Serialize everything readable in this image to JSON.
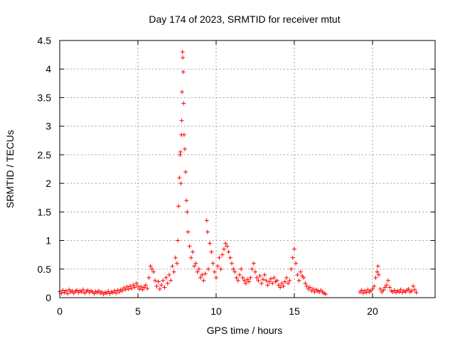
{
  "chart_data": {
    "type": "scatter",
    "title": "Day 174 of 2023, SRMTID for receiver mtut",
    "xlabel": "GPS time / hours",
    "ylabel": "SRMTID / TECUs",
    "xlim": [
      0,
      24
    ],
    "ylim": [
      0,
      4.5
    ],
    "x_ticks": [
      0,
      5,
      10,
      15,
      20
    ],
    "x_tick_labels": [
      "0",
      "5",
      "10",
      "15",
      "20"
    ],
    "y_ticks": [
      0,
      0.5,
      1,
      1.5,
      2,
      2.5,
      3,
      3.5,
      4,
      4.5
    ],
    "y_tick_labels": [
      "0",
      "0.5",
      "1",
      "1.5",
      "2",
      "2.5",
      "3",
      "3.5",
      "4",
      "4.5"
    ],
    "grid": true,
    "marker": "+",
    "color": "#ff0000",
    "series": [
      {
        "name": "SRMTID",
        "points": [
          [
            0.0,
            0.11
          ],
          [
            0.1,
            0.08
          ],
          [
            0.2,
            0.13
          ],
          [
            0.3,
            0.09
          ],
          [
            0.4,
            0.12
          ],
          [
            0.5,
            0.07
          ],
          [
            0.6,
            0.14
          ],
          [
            0.7,
            0.1
          ],
          [
            0.8,
            0.12
          ],
          [
            0.9,
            0.08
          ],
          [
            1.0,
            0.11
          ],
          [
            1.1,
            0.13
          ],
          [
            1.2,
            0.09
          ],
          [
            1.3,
            0.12
          ],
          [
            1.4,
            0.1
          ],
          [
            1.5,
            0.14
          ],
          [
            1.6,
            0.08
          ],
          [
            1.7,
            0.11
          ],
          [
            1.8,
            0.13
          ],
          [
            1.9,
            0.09
          ],
          [
            2.0,
            0.12
          ],
          [
            2.1,
            0.1
          ],
          [
            2.2,
            0.07
          ],
          [
            2.3,
            0.11
          ],
          [
            2.4,
            0.09
          ],
          [
            2.5,
            0.12
          ],
          [
            2.6,
            0.08
          ],
          [
            2.7,
            0.1
          ],
          [
            2.8,
            0.06
          ],
          [
            2.9,
            0.09
          ],
          [
            3.0,
            0.08
          ],
          [
            3.1,
            0.11
          ],
          [
            3.2,
            0.07
          ],
          [
            3.3,
            0.1
          ],
          [
            3.4,
            0.09
          ],
          [
            3.5,
            0.12
          ],
          [
            3.6,
            0.08
          ],
          [
            3.7,
            0.13
          ],
          [
            3.8,
            0.1
          ],
          [
            3.9,
            0.14
          ],
          [
            4.0,
            0.12
          ],
          [
            4.1,
            0.17
          ],
          [
            4.2,
            0.14
          ],
          [
            4.3,
            0.19
          ],
          [
            4.4,
            0.15
          ],
          [
            4.5,
            0.2
          ],
          [
            4.6,
            0.16
          ],
          [
            4.7,
            0.22
          ],
          [
            4.8,
            0.18
          ],
          [
            4.9,
            0.25
          ],
          [
            5.0,
            0.2
          ],
          [
            5.1,
            0.15
          ],
          [
            5.2,
            0.19
          ],
          [
            5.3,
            0.14
          ],
          [
            5.4,
            0.18
          ],
          [
            5.5,
            0.22
          ],
          [
            5.6,
            0.16
          ],
          [
            5.7,
            0.35
          ],
          [
            5.8,
            0.55
          ],
          [
            5.9,
            0.5
          ],
          [
            6.0,
            0.45
          ],
          [
            6.1,
            0.3
          ],
          [
            6.2,
            0.2
          ],
          [
            6.3,
            0.28
          ],
          [
            6.4,
            0.15
          ],
          [
            6.5,
            0.22
          ],
          [
            6.6,
            0.3
          ],
          [
            6.7,
            0.18
          ],
          [
            6.8,
            0.35
          ],
          [
            6.9,
            0.25
          ],
          [
            7.0,
            0.4
          ],
          [
            7.1,
            0.3
          ],
          [
            7.2,
            0.55
          ],
          [
            7.3,
            0.45
          ],
          [
            7.4,
            0.7
          ],
          [
            7.5,
            0.6
          ],
          [
            7.55,
            1.0
          ],
          [
            7.6,
            1.6
          ],
          [
            7.65,
            2.1
          ],
          [
            7.7,
            2.5
          ],
          [
            7.72,
            2.55
          ],
          [
            7.75,
            2.0
          ],
          [
            7.78,
            2.85
          ],
          [
            7.8,
            3.1
          ],
          [
            7.82,
            3.6
          ],
          [
            7.85,
            4.3
          ],
          [
            7.87,
            4.2
          ],
          [
            7.9,
            3.95
          ],
          [
            7.92,
            3.4
          ],
          [
            7.95,
            2.85
          ],
          [
            8.0,
            2.6
          ],
          [
            8.05,
            2.2
          ],
          [
            8.1,
            1.7
          ],
          [
            8.15,
            1.5
          ],
          [
            8.2,
            1.15
          ],
          [
            8.3,
            0.9
          ],
          [
            8.4,
            0.7
          ],
          [
            8.5,
            0.8
          ],
          [
            8.6,
            0.55
          ],
          [
            8.7,
            0.6
          ],
          [
            8.8,
            0.45
          ],
          [
            8.9,
            0.5
          ],
          [
            9.0,
            0.35
          ],
          [
            9.1,
            0.4
          ],
          [
            9.2,
            0.3
          ],
          [
            9.3,
            0.42
          ],
          [
            9.4,
            1.35
          ],
          [
            9.45,
            1.15
          ],
          [
            9.5,
            0.5
          ],
          [
            9.6,
            0.95
          ],
          [
            9.7,
            0.8
          ],
          [
            9.8,
            0.6
          ],
          [
            9.9,
            0.45
          ],
          [
            10.0,
            0.35
          ],
          [
            10.1,
            0.55
          ],
          [
            10.2,
            0.7
          ],
          [
            10.3,
            0.5
          ],
          [
            10.4,
            0.75
          ],
          [
            10.5,
            0.85
          ],
          [
            10.6,
            0.95
          ],
          [
            10.7,
            0.9
          ],
          [
            10.8,
            0.8
          ],
          [
            10.9,
            0.7
          ],
          [
            11.0,
            0.6
          ],
          [
            11.1,
            0.5
          ],
          [
            11.2,
            0.45
          ],
          [
            11.3,
            0.35
          ],
          [
            11.4,
            0.3
          ],
          [
            11.5,
            0.4
          ],
          [
            11.6,
            0.5
          ],
          [
            11.7,
            0.35
          ],
          [
            11.8,
            0.3
          ],
          [
            11.9,
            0.25
          ],
          [
            12.0,
            0.32
          ],
          [
            12.1,
            0.28
          ],
          [
            12.2,
            0.35
          ],
          [
            12.3,
            0.5
          ],
          [
            12.4,
            0.6
          ],
          [
            12.5,
            0.45
          ],
          [
            12.6,
            0.35
          ],
          [
            12.7,
            0.3
          ],
          [
            12.8,
            0.38
          ],
          [
            12.9,
            0.25
          ],
          [
            13.0,
            0.32
          ],
          [
            13.1,
            0.4
          ],
          [
            13.2,
            0.3
          ],
          [
            13.3,
            0.22
          ],
          [
            13.4,
            0.28
          ],
          [
            13.5,
            0.33
          ],
          [
            13.6,
            0.25
          ],
          [
            13.7,
            0.35
          ],
          [
            13.8,
            0.28
          ],
          [
            13.9,
            0.3
          ],
          [
            14.0,
            0.22
          ],
          [
            14.1,
            0.18
          ],
          [
            14.2,
            0.25
          ],
          [
            14.3,
            0.2
          ],
          [
            14.4,
            0.28
          ],
          [
            14.5,
            0.35
          ],
          [
            14.6,
            0.25
          ],
          [
            14.7,
            0.3
          ],
          [
            14.8,
            0.5
          ],
          [
            14.9,
            0.7
          ],
          [
            15.0,
            0.85
          ],
          [
            15.1,
            0.6
          ],
          [
            15.2,
            0.4
          ],
          [
            15.3,
            0.3
          ],
          [
            15.4,
            0.45
          ],
          [
            15.5,
            0.38
          ],
          [
            15.6,
            0.35
          ],
          [
            15.7,
            0.25
          ],
          [
            15.8,
            0.2
          ],
          [
            15.9,
            0.15
          ],
          [
            16.0,
            0.18
          ],
          [
            16.1,
            0.12
          ],
          [
            16.2,
            0.15
          ],
          [
            16.3,
            0.1
          ],
          [
            16.4,
            0.14
          ],
          [
            16.5,
            0.12
          ],
          [
            16.6,
            0.1
          ],
          [
            16.7,
            0.13
          ],
          [
            16.8,
            0.1
          ],
          [
            16.9,
            0.08
          ],
          [
            17.0,
            0.06
          ],
          [
            19.2,
            0.1
          ],
          [
            19.3,
            0.13
          ],
          [
            19.4,
            0.08
          ],
          [
            19.5,
            0.12
          ],
          [
            19.6,
            0.09
          ],
          [
            19.7,
            0.14
          ],
          [
            19.8,
            0.1
          ],
          [
            19.9,
            0.12
          ],
          [
            20.0,
            0.15
          ],
          [
            20.1,
            0.2
          ],
          [
            20.2,
            0.35
          ],
          [
            20.3,
            0.45
          ],
          [
            20.35,
            0.55
          ],
          [
            20.4,
            0.4
          ],
          [
            20.5,
            0.15
          ],
          [
            20.6,
            0.1
          ],
          [
            20.7,
            0.13
          ],
          [
            20.8,
            0.18
          ],
          [
            20.9,
            0.22
          ],
          [
            21.0,
            0.3
          ],
          [
            21.1,
            0.18
          ],
          [
            21.2,
            0.12
          ],
          [
            21.3,
            0.1
          ],
          [
            21.4,
            0.13
          ],
          [
            21.5,
            0.09
          ],
          [
            21.6,
            0.12
          ],
          [
            21.7,
            0.1
          ],
          [
            21.8,
            0.14
          ],
          [
            21.9,
            0.09
          ],
          [
            22.0,
            0.12
          ],
          [
            22.1,
            0.1
          ],
          [
            22.2,
            0.13
          ],
          [
            22.3,
            0.15
          ],
          [
            22.4,
            0.1
          ],
          [
            22.5,
            0.12
          ],
          [
            22.6,
            0.2
          ],
          [
            22.7,
            0.14
          ],
          [
            22.8,
            0.09
          ]
        ]
      }
    ]
  }
}
